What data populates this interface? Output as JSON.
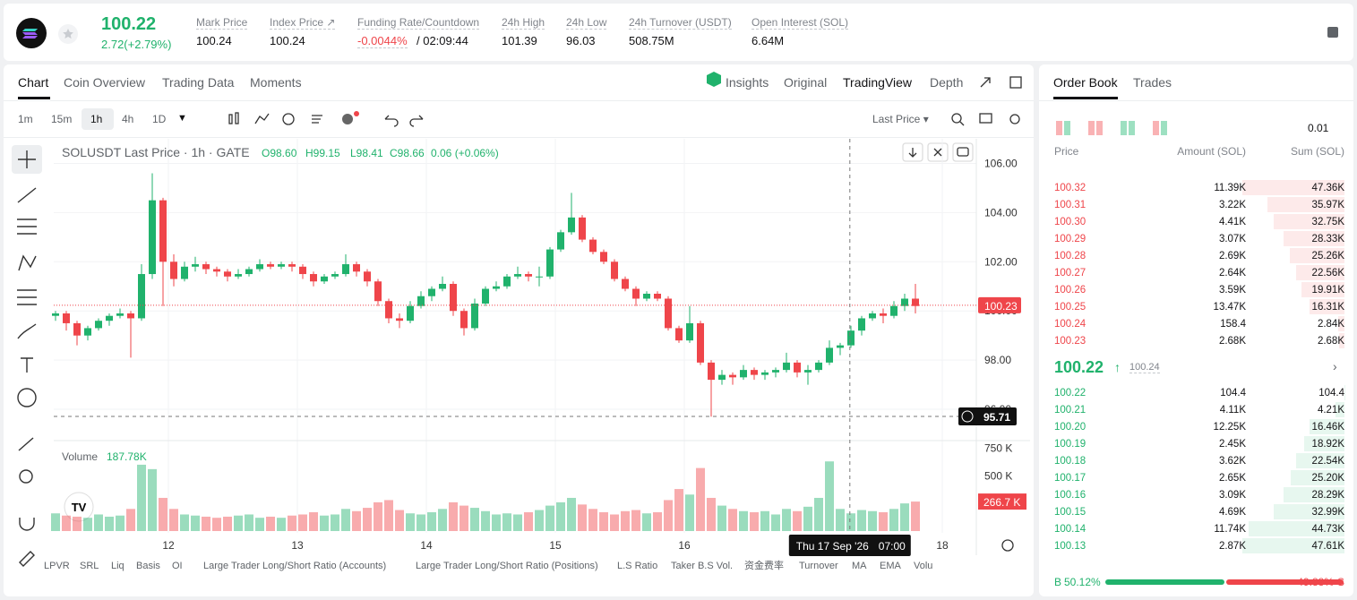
{
  "header": {
    "price": "100.22",
    "change": "2.72(+2.79%)",
    "stats": [
      {
        "label": "Mark Price",
        "value": "100.24"
      },
      {
        "label": "Index Price ↗",
        "value": "100.24"
      },
      {
        "label": "Funding Rate/Countdown",
        "value": "-0.0044%",
        "value2": "/ 02:09:44"
      },
      {
        "label": "24h High",
        "value": "101.39"
      },
      {
        "label": "24h Low",
        "value": "96.03"
      },
      {
        "label": "24h Turnover (USDT)",
        "value": "508.75M"
      },
      {
        "label": "Open Interest (SOL)",
        "value": "6.64M"
      }
    ]
  },
  "tabs": {
    "chart_tabs": [
      "Chart",
      "Coin Overview",
      "Trading Data",
      "Moments"
    ],
    "view_tabs": [
      "Insights",
      "Original",
      "TradingView",
      "Depth"
    ]
  },
  "toolbar": {
    "intervals": [
      "1m",
      "15m",
      "1h",
      "4h",
      "1D"
    ],
    "price_type": "Last Price"
  },
  "chart_data": {
    "type": "candlestick",
    "title": "SOLUSDT Last Price · 1h · GATE",
    "legend_values": [
      "O98.60",
      "H99.15",
      "L98.41",
      "C98.66",
      "0.06 (+0.06%)"
    ],
    "candles": [
      [
        99.8,
        100.0,
        99.6,
        99.9
      ],
      [
        99.9,
        100.0,
        99.2,
        99.5
      ],
      [
        99.5,
        99.6,
        98.6,
        99.0
      ],
      [
        99.0,
        99.4,
        98.8,
        99.3
      ],
      [
        99.3,
        99.7,
        99.2,
        99.6
      ],
      [
        99.6,
        99.9,
        99.4,
        99.8
      ],
      [
        99.8,
        100.1,
        99.7,
        99.9
      ],
      [
        99.9,
        100.0,
        98.1,
        99.7
      ],
      [
        99.7,
        101.9,
        99.6,
        101.5
      ],
      [
        101.5,
        105.6,
        101.3,
        104.5
      ],
      [
        104.5,
        104.6,
        100.2,
        102.0
      ],
      [
        102.0,
        102.3,
        101.0,
        101.3
      ],
      [
        101.3,
        102.0,
        101.2,
        101.8
      ],
      [
        101.8,
        102.2,
        101.6,
        101.9
      ],
      [
        101.9,
        102.0,
        101.5,
        101.7
      ],
      [
        101.7,
        101.8,
        101.4,
        101.6
      ],
      [
        101.6,
        101.7,
        101.2,
        101.4
      ],
      [
        101.4,
        101.7,
        101.3,
        101.5
      ],
      [
        101.5,
        101.8,
        101.4,
        101.7
      ],
      [
        101.7,
        102.1,
        101.6,
        101.9
      ],
      [
        101.9,
        102.0,
        101.7,
        101.8
      ],
      [
        101.8,
        102.0,
        101.7,
        101.9
      ],
      [
        101.9,
        102.0,
        101.6,
        101.8
      ],
      [
        101.8,
        101.9,
        101.3,
        101.5
      ],
      [
        101.5,
        101.6,
        101.0,
        101.2
      ],
      [
        101.2,
        101.5,
        101.1,
        101.4
      ],
      [
        101.4,
        101.6,
        101.3,
        101.5
      ],
      [
        101.5,
        102.3,
        101.4,
        101.9
      ],
      [
        101.9,
        102.0,
        101.4,
        101.6
      ],
      [
        101.6,
        101.7,
        101.0,
        101.2
      ],
      [
        101.2,
        101.3,
        100.2,
        100.4
      ],
      [
        100.4,
        100.5,
        99.5,
        99.7
      ],
      [
        99.7,
        99.9,
        99.3,
        99.6
      ],
      [
        99.6,
        100.4,
        99.5,
        100.2
      ],
      [
        100.2,
        100.8,
        100.1,
        100.6
      ],
      [
        100.6,
        101.0,
        100.4,
        100.9
      ],
      [
        100.9,
        101.4,
        100.8,
        101.1
      ],
      [
        101.1,
        101.2,
        99.8,
        100.0
      ],
      [
        100.0,
        100.1,
        99.0,
        99.3
      ],
      [
        99.3,
        100.5,
        99.2,
        100.3
      ],
      [
        100.3,
        101.0,
        100.2,
        100.9
      ],
      [
        100.9,
        101.2,
        100.8,
        101.0
      ],
      [
        101.0,
        101.5,
        100.9,
        101.4
      ],
      [
        101.4,
        101.8,
        101.3,
        101.5
      ],
      [
        101.5,
        101.6,
        101.2,
        101.4
      ],
      [
        101.4,
        101.8,
        101.0,
        101.4
      ],
      [
        101.4,
        102.6,
        101.3,
        102.5
      ],
      [
        102.5,
        103.3,
        102.4,
        103.2
      ],
      [
        103.2,
        104.8,
        103.1,
        103.8
      ],
      [
        103.8,
        103.9,
        102.8,
        102.9
      ],
      [
        102.9,
        103.0,
        102.3,
        102.4
      ],
      [
        102.4,
        102.5,
        101.9,
        102.0
      ],
      [
        102.0,
        102.1,
        101.2,
        101.3
      ],
      [
        101.3,
        101.4,
        100.8,
        100.9
      ],
      [
        100.9,
        101.0,
        100.2,
        100.5
      ],
      [
        100.5,
        100.8,
        100.4,
        100.7
      ],
      [
        100.7,
        100.8,
        100.4,
        100.5
      ],
      [
        100.5,
        100.6,
        99.2,
        99.3
      ],
      [
        99.3,
        99.4,
        98.7,
        98.8
      ],
      [
        98.8,
        100.2,
        98.7,
        99.5
      ],
      [
        99.5,
        99.6,
        97.8,
        97.9
      ],
      [
        97.9,
        98.0,
        95.7,
        97.2
      ],
      [
        97.2,
        97.6,
        97.0,
        97.4
      ],
      [
        97.4,
        97.5,
        97.0,
        97.3
      ],
      [
        97.3,
        97.8,
        97.2,
        97.6
      ],
      [
        97.6,
        97.7,
        97.2,
        97.4
      ],
      [
        97.4,
        97.6,
        97.2,
        97.5
      ],
      [
        97.5,
        97.7,
        97.3,
        97.6
      ],
      [
        97.6,
        98.3,
        97.5,
        97.9
      ],
      [
        97.9,
        98.0,
        97.3,
        97.5
      ],
      [
        97.5,
        97.8,
        97.0,
        97.6
      ],
      [
        97.6,
        98.0,
        97.5,
        97.9
      ],
      [
        97.9,
        98.8,
        97.8,
        98.5
      ],
      [
        98.5,
        98.7,
        98.2,
        98.6
      ],
      [
        98.6,
        99.4,
        98.5,
        99.2
      ],
      [
        99.2,
        99.8,
        99.0,
        99.7
      ],
      [
        99.7,
        100.0,
        99.6,
        99.9
      ],
      [
        99.9,
        100.1,
        99.5,
        99.8
      ],
      [
        99.8,
        100.4,
        99.7,
        100.2
      ],
      [
        100.2,
        100.7,
        100.0,
        100.5
      ],
      [
        100.5,
        101.1,
        99.9,
        100.2
      ]
    ],
    "up_color": "#20b26c",
    "down_color": "#ef454a",
    "xlim": [
      0,
      85.5
    ],
    "xticks": [
      {
        "value": 10.5,
        "label": "12"
      },
      {
        "value": 22.5,
        "label": "13"
      },
      {
        "value": 34.5,
        "label": "14"
      },
      {
        "value": 46.5,
        "label": "15"
      },
      {
        "value": 58.5,
        "label": "16"
      },
      {
        "value": 82.5,
        "label": "18"
      }
    ],
    "ylim": [
      94.8,
      107
    ],
    "yticks": [
      {
        "value": 96,
        "label": "96.00"
      },
      {
        "value": 98,
        "label": "98.00"
      },
      {
        "value": 100,
        "label": "100.00"
      },
      {
        "value": 102,
        "label": "102.00"
      },
      {
        "value": 104,
        "label": "104.00"
      },
      {
        "value": 106,
        "label": "106.00"
      }
    ],
    "last_price": {
      "value": 100.23,
      "label": "100.23"
    },
    "crosshair": {
      "x": 73.9,
      "y": 95.71,
      "y_label": "95.71",
      "x_label": "Thu 17 Sep '26",
      "x_label2": "07:00"
    },
    "volume": {
      "label": "Volume",
      "value_label": "187.78K",
      "values": [
        160,
        140,
        130,
        120,
        150,
        130,
        140,
        200,
        600,
        560,
        300,
        200,
        150,
        140,
        130,
        120,
        130,
        140,
        150,
        120,
        130,
        120,
        140,
        150,
        170,
        140,
        150,
        200,
        180,
        210,
        260,
        280,
        190,
        160,
        150,
        170,
        200,
        260,
        230,
        210,
        180,
        150,
        160,
        150,
        170,
        190,
        230,
        260,
        300,
        240,
        200,
        170,
        150,
        180,
        190,
        160,
        170,
        280,
        380,
        330,
        570,
        300,
        230,
        200,
        180,
        170,
        180,
        150,
        200,
        180,
        220,
        300,
        630,
        200,
        160,
        190,
        180,
        170,
        200,
        250,
        266.7
      ],
      "ylim": [
        0,
        810
      ],
      "yticks": [
        {
          "value": 500,
          "label": "500 K"
        },
        {
          "value": 750,
          "label": "750 K"
        }
      ],
      "last_label": "266.7 K"
    }
  },
  "indicators": [
    "LPVR",
    "SRL",
    "Liq",
    "Basis",
    "OI",
    "Large Trader Long/Short Ratio (Accounts)",
    "Large Trader Long/Short Ratio (Positions)",
    "L.S Ratio",
    "Taker B.S Vol.",
    "资金费率",
    "Turnover",
    "MA",
    "EMA",
    "Volu"
  ],
  "order_book": {
    "tabs": [
      "Order Book",
      "Trades"
    ],
    "precision": "0.01",
    "columns": [
      "Price",
      "Amount (SOL)",
      "Sum (SOL)"
    ],
    "asks": [
      {
        "price": "100.32",
        "amount": "11.39K",
        "sum": "47.36K",
        "depth": 47.36
      },
      {
        "price": "100.31",
        "amount": "3.22K",
        "sum": "35.97K",
        "depth": 35.97
      },
      {
        "price": "100.30",
        "amount": "4.41K",
        "sum": "32.75K",
        "depth": 32.75
      },
      {
        "price": "100.29",
        "amount": "3.07K",
        "sum": "28.33K",
        "depth": 28.33
      },
      {
        "price": "100.28",
        "amount": "2.69K",
        "sum": "25.26K",
        "depth": 25.26
      },
      {
        "price": "100.27",
        "amount": "2.64K",
        "sum": "22.56K",
        "depth": 22.56
      },
      {
        "price": "100.26",
        "amount": "3.59K",
        "sum": "19.91K",
        "depth": 19.91
      },
      {
        "price": "100.25",
        "amount": "13.47K",
        "sum": "16.31K",
        "depth": 16.31
      },
      {
        "price": "100.24",
        "amount": "158.4",
        "sum": "2.84K",
        "depth": 2.84
      },
      {
        "price": "100.23",
        "amount": "2.68K",
        "sum": "2.68K",
        "depth": 2.68
      }
    ],
    "mid": {
      "price": "100.22",
      "mark": "100.24"
    },
    "bids": [
      {
        "price": "100.22",
        "amount": "104.4",
        "sum": "104.4",
        "depth": 0.1044
      },
      {
        "price": "100.21",
        "amount": "4.11K",
        "sum": "4.21K",
        "depth": 4.21
      },
      {
        "price": "100.20",
        "amount": "12.25K",
        "sum": "16.46K",
        "depth": 16.46
      },
      {
        "price": "100.19",
        "amount": "2.45K",
        "sum": "18.92K",
        "depth": 18.92
      },
      {
        "price": "100.18",
        "amount": "3.62K",
        "sum": "22.54K",
        "depth": 22.54
      },
      {
        "price": "100.17",
        "amount": "2.65K",
        "sum": "25.20K",
        "depth": 25.2
      },
      {
        "price": "100.16",
        "amount": "3.09K",
        "sum": "28.29K",
        "depth": 28.29
      },
      {
        "price": "100.15",
        "amount": "4.69K",
        "sum": "32.99K",
        "depth": 32.99
      },
      {
        "price": "100.14",
        "amount": "11.74K",
        "sum": "44.73K",
        "depth": 44.73
      },
      {
        "price": "100.13",
        "amount": "2.87K",
        "sum": "47.61K",
        "depth": 47.61
      }
    ],
    "ratio": {
      "buy_tag": "B",
      "buy": {
        "value": 50.12,
        "label": "50.12%"
      },
      "sell": {
        "value": 49.88,
        "label": "49.88%"
      },
      "sell_tag": "S"
    }
  }
}
